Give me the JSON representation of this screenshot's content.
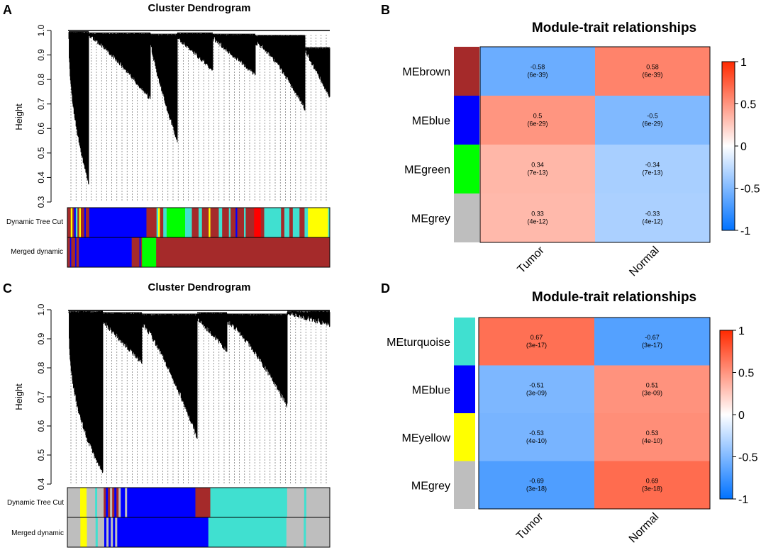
{
  "panels": [
    {
      "letter": "A",
      "title": "Cluster Dendrogram",
      "ylabel": "Height",
      "ylim": [
        0.3,
        1.0
      ],
      "yticks": [
        "0.3",
        "0.4",
        "0.5",
        "0.6",
        "0.7",
        "0.8",
        "0.9",
        "1.0"
      ],
      "rows": [
        {
          "label": "Dynamic Tree Cut",
          "segments": [
            {
              "color": "#a52a2a",
              "weight": 2
            },
            {
              "color": "#ffff00",
              "weight": 1
            },
            {
              "color": "#a52a2a",
              "weight": 1
            },
            {
              "color": "#0000ff",
              "weight": 1
            },
            {
              "color": "#40e0d0",
              "weight": 1
            },
            {
              "color": "#a52a2a",
              "weight": 1
            },
            {
              "color": "#ffff00",
              "weight": 1
            },
            {
              "color": "#a52a2a",
              "weight": 2
            },
            {
              "color": "#0000ff",
              "weight": 1
            },
            {
              "color": "#a52a2a",
              "weight": 2
            },
            {
              "color": "#0000ff",
              "weight": 34
            },
            {
              "color": "#a52a2a",
              "weight": 6
            },
            {
              "color": "#40e0d0",
              "weight": 1
            },
            {
              "color": "#ffff00",
              "weight": 1
            },
            {
              "color": "#a52a2a",
              "weight": 2
            },
            {
              "color": "#40e0d0",
              "weight": 2
            },
            {
              "color": "#00ff00",
              "weight": 11
            },
            {
              "color": "#40e0d0",
              "weight": 4
            },
            {
              "color": "#a52a2a",
              "weight": 4
            },
            {
              "color": "#40e0d0",
              "weight": 2
            },
            {
              "color": "#a52a2a",
              "weight": 4
            },
            {
              "color": "#ffff00",
              "weight": 1
            },
            {
              "color": "#a52a2a",
              "weight": 5
            },
            {
              "color": "#40e0d0",
              "weight": 2
            },
            {
              "color": "#a52a2a",
              "weight": 4
            },
            {
              "color": "#40e0d0",
              "weight": 1
            },
            {
              "color": "#a52a2a",
              "weight": 3
            },
            {
              "color": "#0000ff",
              "weight": 1
            },
            {
              "color": "#a52a2a",
              "weight": 4
            },
            {
              "color": "#40e0d0",
              "weight": 1
            },
            {
              "color": "#a52a2a",
              "weight": 5
            },
            {
              "color": "#ff0000",
              "weight": 4
            },
            {
              "color": "#a52a2a",
              "weight": 2
            },
            {
              "color": "#40e0d0",
              "weight": 10
            },
            {
              "color": "#a52a2a",
              "weight": 2
            },
            {
              "color": "#40e0d0",
              "weight": 3
            },
            {
              "color": "#a52a2a",
              "weight": 2
            },
            {
              "color": "#40e0d0",
              "weight": 4
            },
            {
              "color": "#a52a2a",
              "weight": 3
            },
            {
              "color": "#40e0d0",
              "weight": 2
            },
            {
              "color": "#ffff00",
              "weight": 12
            },
            {
              "color": "#40e0d0",
              "weight": 1
            }
          ]
        },
        {
          "label": "Merged dynamic",
          "segments": [
            {
              "color": "#a52a2a",
              "weight": 2
            },
            {
              "color": "#0000ff",
              "weight": 1
            },
            {
              "color": "#a52a2a",
              "weight": 3
            },
            {
              "color": "#0000ff",
              "weight": 1
            },
            {
              "color": "#a52a2a",
              "weight": 2
            },
            {
              "color": "#0000ff",
              "weight": 41
            },
            {
              "color": "#a52a2a",
              "weight": 6
            },
            {
              "color": "#0000ff",
              "weight": 1
            },
            {
              "color": "#a52a2a",
              "weight": 1
            },
            {
              "color": "#00ff00",
              "weight": 11
            },
            {
              "color": "#a52a2a",
              "weight": 135
            }
          ]
        }
      ]
    },
    {
      "letter": "C",
      "title": "Cluster Dendrogram",
      "ylabel": "Height",
      "ylim": [
        0.4,
        1.0
      ],
      "yticks": [
        "0.4",
        "0.5",
        "0.6",
        "0.7",
        "0.8",
        "0.9",
        "1.0"
      ],
      "rows": [
        {
          "label": "Dynamic Tree Cut",
          "segments": [
            {
              "color": "#bebebe",
              "weight": 6
            },
            {
              "color": "#ffff00",
              "weight": 3
            },
            {
              "color": "#bebebe",
              "weight": 4
            },
            {
              "color": "#40e0d0",
              "weight": 1
            },
            {
              "color": "#bebebe",
              "weight": 3
            },
            {
              "color": "#a52a2a",
              "weight": 1
            },
            {
              "color": "#0000ff",
              "weight": 1
            },
            {
              "color": "#a52a2a",
              "weight": 1
            },
            {
              "color": "#bebebe",
              "weight": 1
            },
            {
              "color": "#a52a2a",
              "weight": 1
            },
            {
              "color": "#0000ff",
              "weight": 1
            },
            {
              "color": "#a52a2a",
              "weight": 1
            },
            {
              "color": "#bebebe",
              "weight": 1
            },
            {
              "color": "#0000ff",
              "weight": 2
            },
            {
              "color": "#bebebe",
              "weight": 1
            },
            {
              "color": "#0000ff",
              "weight": 32
            },
            {
              "color": "#a52a2a",
              "weight": 7
            },
            {
              "color": "#40e0d0",
              "weight": 36
            },
            {
              "color": "#bebebe",
              "weight": 8
            },
            {
              "color": "#40e0d0",
              "weight": 1
            },
            {
              "color": "#bebebe",
              "weight": 11
            }
          ]
        },
        {
          "label": "Merged dynamic",
          "segments": [
            {
              "color": "#bebebe",
              "weight": 6
            },
            {
              "color": "#ffff00",
              "weight": 3
            },
            {
              "color": "#bebebe",
              "weight": 4
            },
            {
              "color": "#40e0d0",
              "weight": 1
            },
            {
              "color": "#bebebe",
              "weight": 3
            },
            {
              "color": "#0000ff",
              "weight": 1
            },
            {
              "color": "#bebebe",
              "weight": 1
            },
            {
              "color": "#0000ff",
              "weight": 1
            },
            {
              "color": "#bebebe",
              "weight": 1
            },
            {
              "color": "#0000ff",
              "weight": 1
            },
            {
              "color": "#bebebe",
              "weight": 1
            },
            {
              "color": "#0000ff",
              "weight": 42
            },
            {
              "color": "#40e0d0",
              "weight": 36
            },
            {
              "color": "#bebebe",
              "weight": 8
            },
            {
              "color": "#40e0d0",
              "weight": 1
            },
            {
              "color": "#bebebe",
              "weight": 11
            }
          ]
        }
      ]
    }
  ],
  "chart_data": [
    {
      "type": "heatmap",
      "panel": "B",
      "title": "Module-trait relationships",
      "columns": [
        "Tumor",
        "Normal"
      ],
      "rows": [
        {
          "name": "MEbrown",
          "color": "#a52a2a",
          "cells": [
            {
              "r": -0.58,
              "p": "(6e-39)",
              "label": "-0.58"
            },
            {
              "r": 0.58,
              "p": "(6e-39)",
              "label": "0.58"
            }
          ]
        },
        {
          "name": "MEblue",
          "color": "#0000ff",
          "cells": [
            {
              "r": 0.5,
              "p": "(6e-29)",
              "label": "0.5"
            },
            {
              "r": -0.5,
              "p": "(6e-29)",
              "label": "-0.5"
            }
          ]
        },
        {
          "name": "MEgreen",
          "color": "#00ff00",
          "cells": [
            {
              "r": 0.34,
              "p": "(7e-13)",
              "label": "0.34"
            },
            {
              "r": -0.34,
              "p": "(7e-13)",
              "label": "-0.34"
            }
          ]
        },
        {
          "name": "MEgrey",
          "color": "#bebebe",
          "cells": [
            {
              "r": 0.33,
              "p": "(4e-12)",
              "label": "0.33"
            },
            {
              "r": -0.33,
              "p": "(4e-12)",
              "label": "-0.33"
            }
          ]
        }
      ],
      "colorbar": {
        "range": [
          -1,
          1
        ],
        "ticks": [
          "1",
          "0.5",
          "0",
          "-0.5",
          "-1"
        ]
      }
    },
    {
      "type": "heatmap",
      "panel": "D",
      "title": "Module-trait relationships",
      "columns": [
        "Tumor",
        "Normal"
      ],
      "rows": [
        {
          "name": "MEturquoise",
          "color": "#40e0d0",
          "cells": [
            {
              "r": 0.67,
              "p": "(3e-17)",
              "label": "0.67"
            },
            {
              "r": -0.67,
              "p": "(3e-17)",
              "label": "-0.67"
            }
          ]
        },
        {
          "name": "MEblue",
          "color": "#0000ff",
          "cells": [
            {
              "r": -0.51,
              "p": "(3e-09)",
              "label": "-0.51"
            },
            {
              "r": 0.51,
              "p": "(3e-09)",
              "label": "0.51"
            }
          ]
        },
        {
          "name": "MEyellow",
          "color": "#ffff00",
          "cells": [
            {
              "r": -0.53,
              "p": "(4e-10)",
              "label": "-0.53"
            },
            {
              "r": 0.53,
              "p": "(4e-10)",
              "label": "0.53"
            }
          ]
        },
        {
          "name": "MEgrey",
          "color": "#bebebe",
          "cells": [
            {
              "r": -0.69,
              "p": "(3e-18)",
              "label": "-0.69"
            },
            {
              "r": 0.69,
              "p": "(3e-18)",
              "label": "0.69"
            }
          ]
        }
      ],
      "colorbar": {
        "range": [
          -1,
          1
        ],
        "ticks": [
          "1",
          "0.5",
          "0",
          "-0.5",
          "-1"
        ]
      }
    }
  ]
}
